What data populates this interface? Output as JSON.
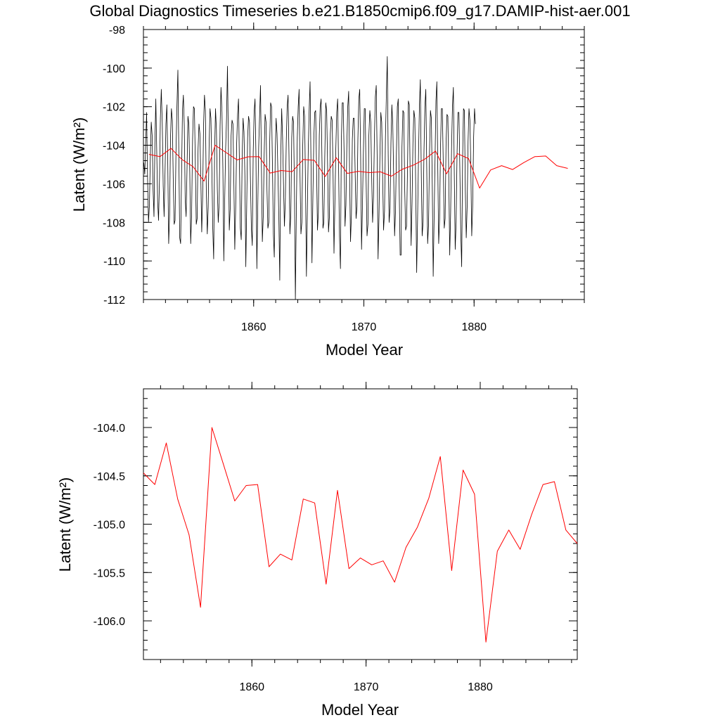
{
  "figure": {
    "title": "Global Diagnostics Timeseries b.e21.B1850cmip6.f09_g17.DAMIP-hist-aer.001"
  },
  "chart_data": [
    {
      "type": "line",
      "xlabel": "Model Year",
      "ylabel": "Latent (W/m²)",
      "ylim": [
        -112,
        -98
      ],
      "xlim": [
        1850,
        1890
      ],
      "x_ticks": [
        1860,
        1870,
        1880
      ],
      "y_ticks": [
        -112,
        -110,
        -108,
        -106,
        -104,
        -102,
        -100,
        -98
      ],
      "y_tick_labels": [
        "-112",
        "-110",
        "-108",
        "-106",
        "-104",
        "-102",
        "-100",
        "-98"
      ],
      "grid": false,
      "series": [
        {
          "color": "#000000",
          "x_start": 1850.04,
          "x_step": 0.08333,
          "values": [
            -104.9,
            -105.5,
            -103.9,
            -102.3,
            -105.8,
            -108.0,
            -107.1,
            -104.6,
            -102.8,
            -103.5,
            -106.3,
            -107.7,
            -103.9,
            -101.6,
            -104.3,
            -106.9,
            -107.9,
            -105.8,
            -102.6,
            -101.1,
            -102.9,
            -106.1,
            -107.7,
            -105.4,
            -102.9,
            -101.9,
            -104.9,
            -109.1,
            -107.6,
            -103.6,
            -102.1,
            -102.7,
            -105.8,
            -108.1,
            -107.9,
            -104.3,
            -101.9,
            -100.1,
            -104.3,
            -108.8,
            -109.1,
            -105.6,
            -102.2,
            -101.4,
            -103.0,
            -106.8,
            -107.7,
            -105.2,
            -102.5,
            -102.9,
            -105.4,
            -109.1,
            -107.6,
            -103.7,
            -102.0,
            -102.1,
            -104.9,
            -108.1,
            -107.8,
            -104.2,
            -102.9,
            -103.4,
            -105.7,
            -108.5,
            -106.7,
            -103.0,
            -101.4,
            -102.2,
            -106.3,
            -108.6,
            -107.2,
            -104.0,
            -102.1,
            -102.6,
            -105.2,
            -108.3,
            -109.9,
            -104.4,
            -102.1,
            -103.2,
            -106.3,
            -108.0,
            -107.0,
            -103.0,
            -101.0,
            -102.3,
            -105.2,
            -110.0,
            -106.8,
            -104.2,
            -102.6,
            -99.9,
            -103.8,
            -108.4,
            -107.3,
            -103.5,
            -102.7,
            -102.9,
            -105.9,
            -109.4,
            -107.2,
            -103.9,
            -102.4,
            -101.6,
            -104.9,
            -108.3,
            -108.9,
            -104.6,
            -102.6,
            -103.3,
            -105.6,
            -110.3,
            -107.1,
            -103.6,
            -102.5,
            -102.8,
            -105.6,
            -108.3,
            -109.2,
            -104.4,
            -102.3,
            -101.6,
            -104.5,
            -110.4,
            -107.2,
            -104.1,
            -102.5,
            -100.9,
            -105.0,
            -109.0,
            -107.7,
            -104.5,
            -102.4,
            -102.8,
            -106.3,
            -108.3,
            -108.0,
            -103.8,
            -101.8,
            -102.0,
            -105.1,
            -108.6,
            -109.8,
            -104.5,
            -102.6,
            -103.4,
            -105.5,
            -107.8,
            -111.0,
            -104.6,
            -102.1,
            -103.6,
            -106.0,
            -108.2,
            -106.9,
            -103.9,
            -102.0,
            -101.4,
            -104.5,
            -108.6,
            -107.6,
            -103.6,
            -102.5,
            -102.8,
            -106.4,
            -112.0,
            -107.3,
            -103.6,
            -102.0,
            -101.1,
            -105.6,
            -108.6,
            -108.0,
            -104.0,
            -102.0,
            -102.5,
            -106.0,
            -110.8,
            -107.5,
            -104.3,
            -102.2,
            -100.7,
            -105.2,
            -110.1,
            -106.7,
            -103.7,
            -102.3,
            -102.2,
            -105.1,
            -108.4,
            -107.5,
            -103.5,
            -102.0,
            -101.6,
            -105.0,
            -108.3,
            -108.0,
            -104.6,
            -101.8,
            -102.2,
            -105.0,
            -108.5,
            -107.7,
            -103.4,
            -102.5,
            -102.7,
            -105.5,
            -109.6,
            -107.0,
            -104.2,
            -102.3,
            -101.6,
            -105.0,
            -108.7,
            -110.4,
            -103.7,
            -101.8,
            -101.8,
            -104.4,
            -108.2,
            -107.1,
            -104.0,
            -102.0,
            -101.2,
            -105.5,
            -109.0,
            -107.6,
            -103.7,
            -102.6,
            -102.6,
            -105.4,
            -107.8,
            -107.2,
            -103.7,
            -101.6,
            -101.1,
            -104.5,
            -109.4,
            -107.1,
            -104.4,
            -102.1,
            -102.1,
            -105.8,
            -108.7,
            -108.1,
            -103.5,
            -102.2,
            -102.8,
            -105.6,
            -108.0,
            -106.7,
            -103.6,
            -101.5,
            -100.9,
            -104.6,
            -109.9,
            -107.7,
            -104.6,
            -102.3,
            -102.8,
            -105.6,
            -108.4,
            -107.4,
            -103.6,
            -101.4,
            -99.4,
            -104.5,
            -108.0,
            -107.3,
            -103.9,
            -101.9,
            -102.9,
            -105.6,
            -108.7,
            -107.4,
            -104.4,
            -102.0,
            -101.6,
            -106.1,
            -109.7,
            -109.7,
            -104.1,
            -102.2,
            -102.3,
            -106.3,
            -108.4,
            -108.2,
            -105.4,
            -101.7,
            -101.9,
            -105.7,
            -109.2,
            -107.0,
            -103.9,
            -102.2,
            -102.6,
            -106.3,
            -110.6,
            -107.8,
            -104.6,
            -102.0,
            -100.6,
            -105.3,
            -108.7,
            -108.0,
            -104.3,
            -102.0,
            -101.1,
            -105.1,
            -109.1,
            -108.1,
            -104.3,
            -102.2,
            -102.6,
            -106.1,
            -110.8,
            -107.8,
            -104.8,
            -101.7,
            -100.7,
            -105.1,
            -109.1,
            -107.8,
            -104.1,
            -102.1,
            -102.1,
            -104.9,
            -108.3,
            -107.8,
            -103.9,
            -102.4,
            -102.5,
            -105.7,
            -109.7,
            -107.5,
            -104.2,
            -102.0,
            -101.0,
            -105.5,
            -109.4,
            -108.0,
            -104.5,
            -102.3,
            -102.3,
            -105.2,
            -108.5,
            -110.3,
            -104.8,
            -102.1,
            -102.2,
            -106.3,
            -108.8,
            -107.2,
            -103.8,
            -102.1,
            -102.7,
            -105.1,
            -108.7,
            -107.2,
            -103.6,
            -102.1,
            -102.9
          ]
        },
        {
          "color": "#ff0000",
          "x_start": 1850.5,
          "x_step": 1,
          "values": [
            -104.47,
            -104.59,
            -104.16,
            -104.74,
            -105.11,
            -105.86,
            -104.0,
            -104.38,
            -104.76,
            -104.6,
            -104.59,
            -105.44,
            -105.31,
            -105.37,
            -104.74,
            -104.78,
            -105.62,
            -104.65,
            -105.46,
            -105.35,
            -105.42,
            -105.38,
            -105.6,
            -105.24,
            -105.03,
            -104.73,
            -104.3,
            -105.48,
            -104.44,
            -104.69,
            -106.22,
            -105.28,
            -105.06,
            -105.26,
            -104.9,
            -104.59,
            -104.56,
            -105.06,
            -105.2
          ]
        }
      ]
    },
    {
      "type": "line",
      "xlabel": "Model Year",
      "ylabel": "Latent (W/m²)",
      "ylim": [
        -106.4,
        -103.6
      ],
      "xlim": [
        1850.5,
        1888.5
      ],
      "x_ticks": [
        1860,
        1870,
        1880
      ],
      "y_ticks": [
        -106.0,
        -105.5,
        -105.0,
        -104.5,
        -104.0
      ],
      "y_tick_labels": [
        "-106.0",
        "-105.5",
        "-105.0",
        "-104.5",
        "-104.0"
      ],
      "grid": false,
      "series": [
        {
          "color": "#ff0000",
          "x_start": 1850.5,
          "x_step": 1,
          "values": [
            -104.47,
            -104.59,
            -104.16,
            -104.74,
            -105.11,
            -105.86,
            -104.0,
            -104.38,
            -104.76,
            -104.6,
            -104.59,
            -105.44,
            -105.31,
            -105.37,
            -104.74,
            -104.78,
            -105.62,
            -104.65,
            -105.46,
            -105.35,
            -105.42,
            -105.38,
            -105.6,
            -105.24,
            -105.03,
            -104.73,
            -104.3,
            -105.48,
            -104.44,
            -104.69,
            -106.22,
            -105.28,
            -105.06,
            -105.26,
            -104.9,
            -104.59,
            -104.56,
            -105.06,
            -105.2
          ]
        }
      ]
    }
  ]
}
